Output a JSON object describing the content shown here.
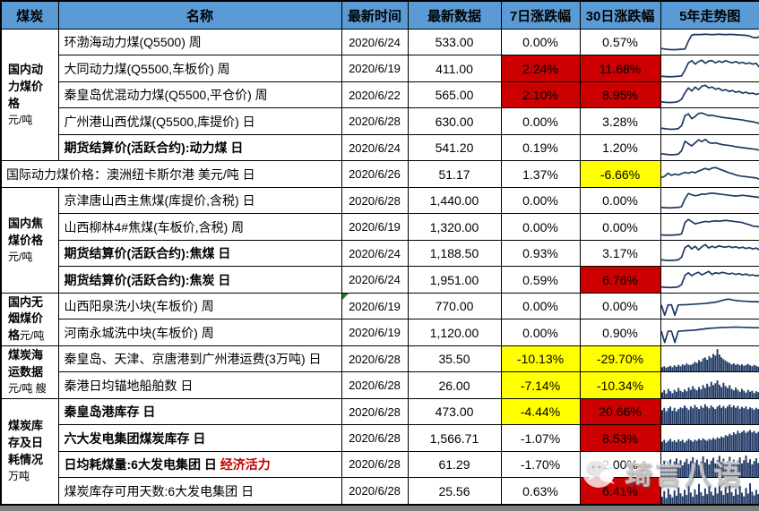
{
  "colors": {
    "header_bg": "#5B9BD5",
    "red_bg": "#CC0000",
    "yellow_bg": "#FFFF00",
    "spark_line": "#1F3864",
    "accent_red_text": "#C00000",
    "footer_bar": "#7F7F7F",
    "comment_flag_green": "#1F7A33"
  },
  "header": {
    "cells": [
      "煤炭",
      "名称",
      "最新时间",
      "最新数据",
      "7日涨跌幅",
      "30日涨跌幅",
      "5年走势图"
    ]
  },
  "categories": [
    {
      "label": "国内动力煤价格",
      "unit": "元/吨"
    },
    {
      "label": "国内焦煤价格",
      "unit": "元/吨"
    },
    {
      "label": "国内无烟煤价格",
      "unit": "元/吨"
    },
    {
      "label": "煤炭海运数据",
      "unit": "元/吨 艘"
    },
    {
      "label": "煤炭库存及日耗情况",
      "unit": "万吨"
    }
  ],
  "rows": [
    {
      "name": "环渤海动力煤(Q5500) 周",
      "date": "2020/6/24",
      "value": "533.00",
      "chg7": "0.00%",
      "chg7_bg": "",
      "chg30": "0.57%",
      "chg30_bg": "",
      "spark": {
        "type": "line",
        "points": [
          20,
          18,
          16,
          15,
          15,
          16,
          17,
          18,
          55,
          82,
          85,
          84,
          85,
          86,
          85,
          84,
          85,
          86,
          85,
          84,
          85,
          85,
          84,
          83,
          82,
          81,
          78,
          72,
          70,
          74
        ]
      }
    },
    {
      "name": "大同动力煤(Q5500,车板价) 周",
      "date": "2020/6/19",
      "value": "411.00",
      "chg7": "2.24%",
      "chg7_bg": "#CC0000",
      "chg30": "11.68%",
      "chg30_bg": "#CC0000",
      "spark": {
        "type": "line",
        "points": [
          16,
          15,
          14,
          14,
          15,
          16,
          18,
          45,
          78,
          88,
          72,
          84,
          90,
          76,
          86,
          88,
          78,
          86,
          80,
          88,
          82,
          78,
          84,
          76,
          80,
          74,
          78,
          72,
          76,
          58
        ]
      }
    },
    {
      "name": "秦皇岛优混动力煤(Q5500,平仓价) 周",
      "date": "2020/6/22",
      "value": "565.00",
      "chg7": "2.10%",
      "chg7_bg": "#CC0000",
      "chg30": "8.95%",
      "chg30_bg": "#CC0000",
      "spark": {
        "type": "line",
        "points": [
          18,
          16,
          15,
          15,
          16,
          20,
          30,
          60,
          82,
          68,
          86,
          74,
          90,
          94,
          82,
          86,
          76,
          80,
          70,
          74,
          66,
          70,
          62,
          66,
          58,
          62,
          56,
          58,
          52,
          56
        ]
      }
    },
    {
      "name": "广州港山西优煤(Q5500,库提价) 日",
      "date": "2020/6/28",
      "value": "630.00",
      "chg7": "0.00%",
      "chg7_bg": "",
      "chg30": "3.28%",
      "chg30_bg": "",
      "spark": {
        "type": "line",
        "points": [
          20,
          18,
          16,
          15,
          16,
          18,
          32,
          78,
          86,
          64,
          74,
          88,
          90,
          84,
          78,
          80,
          76,
          73,
          70,
          68,
          66,
          64,
          62,
          60,
          58,
          55,
          52,
          50,
          46,
          42
        ]
      }
    },
    {
      "name": "期货结算价(活跃合约):动力煤 日",
      "date": "2020/6/24",
      "value": "541.20",
      "chg7": "0.19%",
      "chg7_bg": "",
      "chg30": "1.20%",
      "chg30_bg": "",
      "spark": {
        "type": "line",
        "points": [
          22,
          20,
          18,
          17,
          18,
          20,
          36,
          80,
          68,
          58,
          72,
          86,
          78,
          88,
          74,
          70,
          72,
          68,
          64,
          62,
          60,
          58,
          54,
          52,
          50,
          48,
          46,
          44,
          42,
          38
        ]
      }
    },
    {
      "name": "国际动力煤价格：澳洲纽卡斯尔港 美元/吨 日",
      "date": "2020/6/26",
      "value": "51.17",
      "chg7": "1.37%",
      "chg7_bg": "",
      "chg30": "-6.66%",
      "chg30_bg": "#FFFF00",
      "spark": {
        "type": "line",
        "points": [
          36,
          42,
          56,
          46,
          52,
          48,
          54,
          60,
          56,
          62,
          58,
          66,
          72,
          78,
          72,
          80,
          82,
          76,
          70,
          64,
          58,
          54,
          48,
          44,
          42,
          40,
          38,
          36,
          34,
          28
        ]
      }
    },
    {
      "name": "京津唐山西主焦煤(库提价,含税) 日",
      "date": "2020/6/28",
      "value": "1,440.00",
      "chg7": "0.00%",
      "chg7_bg": "",
      "chg30": "0.00%",
      "chg30_bg": "",
      "spark": {
        "type": "line",
        "points": [
          18,
          17,
          16,
          16,
          17,
          18,
          22,
          58,
          82,
          76,
          72,
          74,
          80,
          78,
          82,
          84,
          82,
          80,
          78,
          76,
          74,
          72,
          70,
          72,
          74,
          72,
          70,
          68,
          66,
          64
        ]
      }
    },
    {
      "name": "山西柳林4#焦煤(车板价,含税) 周",
      "date": "2020/6/19",
      "value": "1,320.00",
      "chg7": "0.00%",
      "chg7_bg": "",
      "chg30": "0.00%",
      "chg30_bg": "",
      "spark": {
        "type": "line",
        "points": [
          15,
          14,
          14,
          14,
          15,
          16,
          20,
          72,
          86,
          76,
          66,
          70,
          74,
          77,
          75,
          78,
          80,
          78,
          80,
          82,
          80,
          78,
          76,
          74,
          72,
          66,
          62,
          56,
          54,
          52
        ]
      }
    },
    {
      "name": "期货结算价(活跃合约):焦煤 日",
      "date": "2020/6/24",
      "value": "1,188.50",
      "chg7": "0.93%",
      "chg7_bg": "",
      "chg30": "3.17%",
      "chg30_bg": "",
      "spark": {
        "type": "line",
        "points": [
          20,
          18,
          17,
          17,
          18,
          20,
          32,
          76,
          86,
          70,
          82,
          66,
          80,
          90,
          74,
          82,
          76,
          84,
          80,
          78,
          82,
          76,
          80,
          74,
          78,
          72,
          76,
          70,
          74,
          66
        ]
      }
    },
    {
      "name": "期货结算价(活跃合约):焦炭 日",
      "date": "2020/6/24",
      "value": "1,951.00",
      "chg7": "0.59%",
      "chg7_bg": "",
      "chg30": "6.76%",
      "chg30_bg": "#CC0000",
      "spark": {
        "type": "line",
        "points": [
          18,
          17,
          16,
          16,
          17,
          19,
          30,
          72,
          84,
          70,
          80,
          86,
          74,
          82,
          90,
          76,
          84,
          80,
          86,
          82,
          78,
          82,
          76,
          80,
          74,
          78,
          72,
          74,
          70,
          72
        ]
      }
    },
    {
      "name": "山西阳泉洗小块(车板价) 周",
      "date": "2020/6/19",
      "value": "770.00",
      "chg7": "0.00%",
      "chg7_bg": "",
      "chg30": "0.00%",
      "chg30_bg": "",
      "comment_flag": true,
      "spark": {
        "type": "line",
        "points": [
          55,
          8,
          55,
          55,
          8,
          55,
          56,
          56,
          57,
          58,
          59,
          60,
          61,
          62,
          64,
          66,
          68,
          72,
          76,
          80,
          82,
          78,
          76,
          74,
          73,
          72,
          71,
          70,
          70,
          69
        ]
      }
    },
    {
      "name": "河南永城洗中块(车板价) 周",
      "date": "2020/6/19",
      "value": "1,120.00",
      "chg7": "0.00%",
      "chg7_bg": "",
      "chg30": "0.90%",
      "chg30_bg": "",
      "spark": {
        "type": "line",
        "points": [
          58,
          6,
          58,
          58,
          6,
          58,
          59,
          60,
          61,
          62,
          63,
          65,
          67,
          69,
          71,
          72,
          73,
          74,
          75,
          75,
          76,
          76,
          77,
          76,
          76,
          75,
          75,
          74,
          74,
          74
        ]
      }
    },
    {
      "name": "秦皇岛、天津、京唐港到广州港运费(3万吨) 日",
      "date": "2020/6/28",
      "value": "35.50",
      "chg7": "-10.13%",
      "chg7_bg": "#FFFF00",
      "chg30": "-29.70%",
      "chg30_bg": "#FFFF00",
      "spark": {
        "type": "bar",
        "points": [
          18,
          22,
          16,
          20,
          24,
          18,
          26,
          20,
          28,
          22,
          30,
          26,
          34,
          28,
          28,
          32,
          40,
          36,
          48,
          42,
          55,
          60,
          50,
          65,
          58,
          75,
          68,
          95,
          72,
          60,
          52,
          46,
          40,
          36,
          30,
          34,
          28,
          32,
          26,
          30,
          24,
          28,
          32,
          26,
          22,
          28,
          24,
          20
        ]
      }
    },
    {
      "name": "秦港日均锚地船舶数 日",
      "date": "2020/6/28",
      "value": "26.00",
      "chg7": "-7.14%",
      "chg7_bg": "#FFFF00",
      "chg30": "-10.34%",
      "chg30_bg": "#FFFF00",
      "spark": {
        "type": "bar",
        "points": [
          25,
          35,
          20,
          40,
          30,
          22,
          36,
          28,
          44,
          32,
          26,
          38,
          30,
          46,
          36,
          52,
          40,
          34,
          48,
          38,
          56,
          44,
          62,
          50,
          70,
          56,
          64,
          76,
          58,
          48,
          66,
          52,
          44,
          56,
          40,
          34,
          46,
          36,
          28,
          40,
          32,
          24,
          36,
          28,
          32,
          22,
          30,
          26
        ]
      }
    },
    {
      "name": "秦皇岛港库存 日",
      "date": "2020/6/28",
      "value": "473.00",
      "chg7": "-4.44%",
      "chg7_bg": "#FFFF00",
      "chg30": "20.66%",
      "chg30_bg": "#CC0000",
      "spark": {
        "type": "bar",
        "points": [
          60,
          70,
          55,
          68,
          75,
          58,
          70,
          55,
          65,
          72,
          68,
          80,
          70,
          62,
          76,
          68,
          82,
          72,
          65,
          78,
          70,
          85,
          75,
          68,
          80,
          72,
          65,
          75,
          82,
          70,
          78,
          68,
          76,
          84,
          72,
          80,
          70,
          78,
          66,
          74,
          68,
          76,
          64,
          72,
          68,
          62,
          70,
          65
        ]
      }
    },
    {
      "name": "六大发电集团煤炭库存 日",
      "date": "2020/6/28",
      "value": "1,566.71",
      "chg7": "-1.07%",
      "chg7_bg": "",
      "chg30": "8.53%",
      "chg30_bg": "#CC0000",
      "spark": {
        "type": "bar",
        "points": [
          40,
          48,
          36,
          44,
          52,
          40,
          46,
          38,
          50,
          42,
          48,
          36,
          44,
          52,
          46,
          40,
          48,
          44,
          52,
          46,
          54,
          48,
          44,
          52,
          48,
          56,
          50,
          58,
          54,
          62,
          58,
          68,
          64,
          74,
          68,
          80,
          72,
          86,
          76,
          82,
          88,
          78,
          84,
          90,
          80,
          86,
          76,
          82
        ]
      }
    },
    {
      "name": "日均耗煤量:6大发电集团 日",
      "name_extra": "经济活力",
      "date": "2020/6/28",
      "value": "61.29",
      "chg7": "-1.70%",
      "chg7_bg": "",
      "chg30": "2.00%",
      "chg30_bg": "",
      "spark": {
        "type": "bar",
        "points": [
          55,
          70,
          48,
          62,
          75,
          52,
          66,
          80,
          58,
          72,
          50,
          64,
          78,
          56,
          68,
          84,
          60,
          74,
          52,
          66,
          88,
          62,
          76,
          54,
          70,
          82,
          58,
          72,
          90,
          64,
          78,
          56,
          68,
          86,
          60,
          74,
          52,
          70,
          84,
          58,
          72,
          92,
          62,
          76,
          54,
          68,
          80,
          60
        ]
      }
    },
    {
      "name": "煤炭库存可用天数:6大发电集团 日",
      "date": "2020/6/28",
      "value": "25.56",
      "chg7": "0.63%",
      "chg7_bg": "",
      "chg30": "6.41%",
      "chg30_bg": "#CC0000",
      "spark": {
        "type": "bar",
        "points": [
          30,
          55,
          25,
          65,
          40,
          28,
          58,
          35,
          70,
          45,
          32,
          60,
          38,
          75,
          48,
          30,
          62,
          40,
          85,
          50,
          34,
          66,
          42,
          78,
          52,
          36,
          70,
          44,
          90,
          55,
          38,
          72,
          46,
          82,
          50,
          34,
          64,
          40,
          76,
          48,
          32,
          68,
          44,
          88,
          52,
          36,
          60,
          42
        ]
      }
    }
  ],
  "watermark": {
    "text": "琦言八语"
  }
}
